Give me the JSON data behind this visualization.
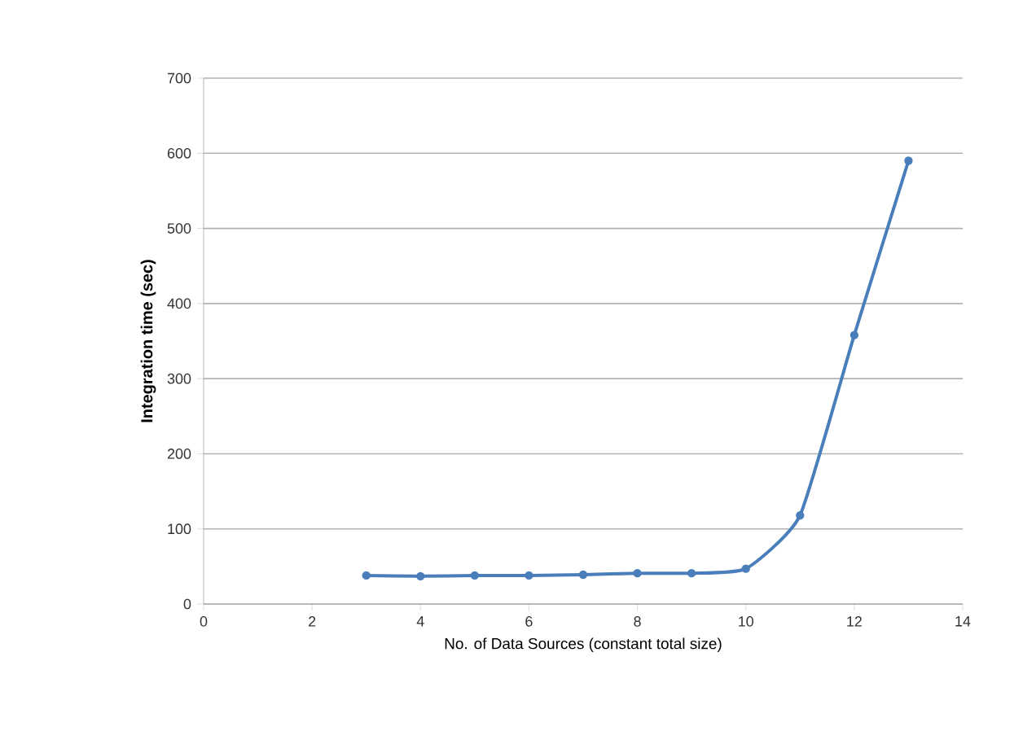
{
  "chart_data": {
    "type": "line",
    "xlabel": "No. of Data Sources (constant total size)",
    "ylabel": "Integration time (sec)",
    "x": [
      3,
      4,
      5,
      6,
      7,
      8,
      9,
      10,
      11,
      12,
      13
    ],
    "series": [
      {
        "color": "#4a7ebb",
        "values": [
          38,
          37,
          38,
          38,
          39,
          41,
          41,
          47,
          118,
          358,
          590
        ]
      }
    ],
    "xlim": [
      0,
      14
    ],
    "xticks": [
      0,
      2,
      4,
      6,
      8,
      10,
      12,
      14
    ],
    "ylim": [
      0,
      700
    ],
    "yticks": [
      0,
      100,
      200,
      300,
      400,
      500,
      600,
      700
    ],
    "grid": "y",
    "marker": "circle",
    "line_style": "solid"
  }
}
